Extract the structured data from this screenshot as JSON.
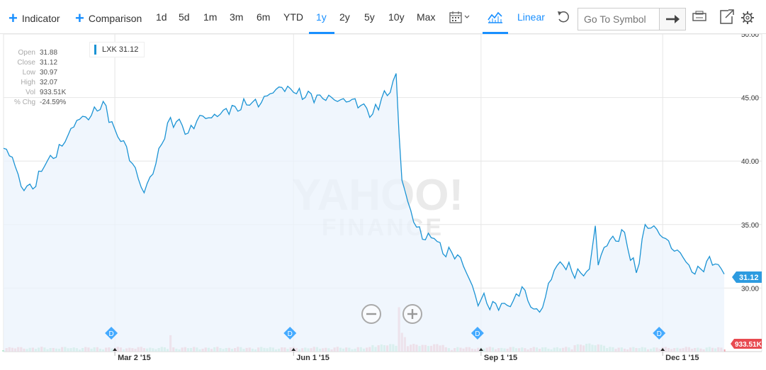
{
  "toolbar": {
    "indicator_label": "Indicator",
    "comparison_label": "Comparison",
    "ranges": [
      "1d",
      "5d",
      "1m",
      "3m",
      "6m",
      "YTD",
      "1y",
      "2y",
      "5y",
      "10y",
      "Max"
    ],
    "active_range": "1y",
    "scale_label": "Linear",
    "search_placeholder": "Go To Symbol",
    "icons": [
      "calendar-icon",
      "chevron-down-icon",
      "chart-type-icon",
      "undo-icon",
      "arrow-right-icon",
      "print-icon",
      "popout-icon",
      "gear-icon"
    ],
    "accent_color": "#188fff"
  },
  "ohlc": {
    "rows": [
      {
        "label": "Open",
        "value": "31.88"
      },
      {
        "label": "Close",
        "value": "31.12"
      },
      {
        "label": "Low",
        "value": "30.97"
      },
      {
        "label": "High",
        "value": "32.07"
      },
      {
        "label": "Vol",
        "value": "933.51K"
      },
      {
        "label": "% Chg",
        "value": "-24.59%"
      }
    ]
  },
  "legend": {
    "symbol": "LXK",
    "last": "31.12"
  },
  "watermark": {
    "line1": "YAHOO!",
    "line2": "FINANCE"
  },
  "chart_data": {
    "type": "area",
    "ylim": [
      25,
      50
    ],
    "yticks": [
      "50.00",
      "45.00",
      "40.00",
      "35.00",
      "30.00"
    ],
    "ytick_values": [
      50,
      45,
      40,
      35,
      30
    ],
    "xtick_labels": [
      "Mar 2 '15",
      "Jun 1 '15",
      "Sep 1 '15",
      "Dec 1 '15"
    ],
    "xtick_index": [
      38,
      99,
      163,
      225
    ],
    "n_points": 247,
    "price_anchors": [
      [
        0,
        41.0
      ],
      [
        3,
        40.3
      ],
      [
        6,
        38.0
      ],
      [
        10,
        37.8
      ],
      [
        14,
        39.6
      ],
      [
        17,
        40.2
      ],
      [
        21,
        41.5
      ],
      [
        25,
        43.2
      ],
      [
        30,
        43.6
      ],
      [
        34,
        44.7
      ],
      [
        38,
        42.5
      ],
      [
        41,
        41.6
      ],
      [
        44,
        39.8
      ],
      [
        48,
        37.5
      ],
      [
        52,
        39.8
      ],
      [
        56,
        43.0
      ],
      [
        60,
        43.3
      ],
      [
        63,
        42.2
      ],
      [
        67,
        43.6
      ],
      [
        71,
        43.4
      ],
      [
        75,
        44.0
      ],
      [
        79,
        44.3
      ],
      [
        84,
        44.4
      ],
      [
        88,
        44.6
      ],
      [
        91,
        45.3
      ],
      [
        95,
        45.8
      ],
      [
        99,
        45.4
      ],
      [
        103,
        45.0
      ],
      [
        108,
        45.2
      ],
      [
        113,
        44.8
      ],
      [
        118,
        44.7
      ],
      [
        123,
        44.5
      ],
      [
        126,
        43.7
      ],
      [
        129,
        44.9
      ],
      [
        132,
        45.4
      ],
      [
        134,
        46.9
      ],
      [
        135,
        42.2
      ],
      [
        136,
        38.5
      ],
      [
        138,
        36.8
      ],
      [
        141,
        34.8
      ],
      [
        144,
        33.8
      ],
      [
        147,
        33.9
      ],
      [
        150,
        32.7
      ],
      [
        153,
        32.8
      ],
      [
        156,
        32.4
      ],
      [
        158,
        31.2
      ],
      [
        160,
        30.2
      ],
      [
        162,
        28.6
      ],
      [
        164,
        29.6
      ],
      [
        166,
        28.3
      ],
      [
        168,
        28.8
      ],
      [
        171,
        28.8
      ],
      [
        174,
        29.0
      ],
      [
        177,
        30.1
      ],
      [
        180,
        28.5
      ],
      [
        183,
        28.1
      ],
      [
        185,
        29.3
      ],
      [
        188,
        31.4
      ],
      [
        191,
        31.8
      ],
      [
        194,
        31.3
      ],
      [
        197,
        31.2
      ],
      [
        200,
        31.5
      ],
      [
        202,
        34.9
      ],
      [
        203,
        31.8
      ],
      [
        205,
        33.2
      ],
      [
        207,
        33.8
      ],
      [
        209,
        33.7
      ],
      [
        211,
        34.6
      ],
      [
        213,
        33.2
      ],
      [
        216,
        31.2
      ],
      [
        219,
        35.0
      ],
      [
        222,
        34.9
      ],
      [
        224,
        34.2
      ],
      [
        226,
        33.9
      ],
      [
        229,
        32.9
      ],
      [
        232,
        32.4
      ],
      [
        234,
        31.8
      ],
      [
        236,
        31.1
      ],
      [
        238,
        31.5
      ],
      [
        240,
        32.1
      ],
      [
        243,
        31.9
      ],
      [
        246,
        31.1
      ]
    ],
    "volume_label": "933.51K",
    "volume_max_k": 10000,
    "volume_spikes": [
      [
        57,
        3400
      ],
      [
        135,
        9200
      ],
      [
        136,
        3900
      ],
      [
        137,
        3000
      ]
    ],
    "dividend_index": [
      38,
      99,
      163,
      225
    ],
    "dividend_label": "D",
    "colors": {
      "line": "#1b93d4",
      "fill": "#ebf3fc",
      "vol_up": "#a9e4c3",
      "vol_down": "#f2a7ae",
      "vol_spike": "#f4b3bb",
      "dividend": "#44aaff",
      "last_badge": "#2d9be0",
      "vol_badge": "#e84a50"
    }
  }
}
